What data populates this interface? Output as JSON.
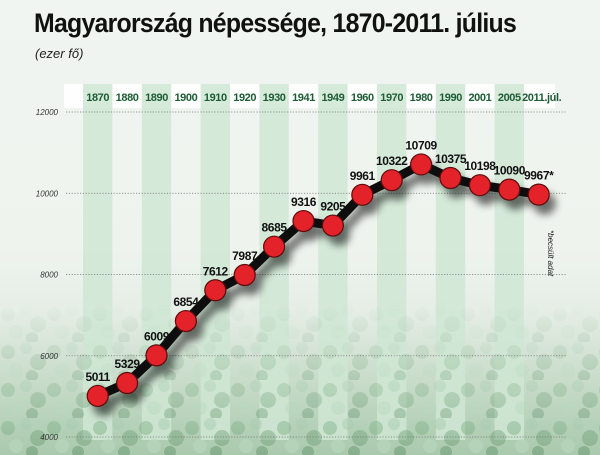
{
  "title": "Magyarország népessége, 1870-2011. július",
  "subtitle": "(ezer fő)",
  "note": "*becsült adat",
  "colors": {
    "header_text": "#1d5c35",
    "stripe": "#cfe6d3",
    "marker": "#e3202a",
    "line": "#0d0d0d"
  },
  "chart_data": {
    "type": "line",
    "title": "Magyarország népessége, 1870-2011. július",
    "subtitle": "(ezer fő)",
    "xlabel": "",
    "ylabel": "ezer fő",
    "categories": [
      "1870",
      "1880",
      "1890",
      "1900",
      "1910",
      "1920",
      "1930",
      "1941",
      "1949",
      "1960",
      "1970",
      "1980",
      "1990",
      "2001",
      "2005",
      "2011.júl."
    ],
    "values": [
      5011,
      5329,
      6009,
      6854,
      7612,
      7987,
      8685,
      9316,
      9205,
      9961,
      10322,
      10709,
      10375,
      10198,
      10090,
      9967
    ],
    "data_labels": [
      "5011",
      "5329",
      "6009",
      "6854",
      "7612",
      "7987",
      "8685",
      "9316",
      "9205",
      "9961",
      "10322",
      "10709",
      "10375",
      "10198",
      "10090",
      "9967*"
    ],
    "yticks": [
      4000,
      6000,
      8000,
      10000,
      12000
    ],
    "ylim": [
      4000,
      12000
    ],
    "grid": "horizontal dotted",
    "annotations": [
      "*becsült adat"
    ]
  }
}
